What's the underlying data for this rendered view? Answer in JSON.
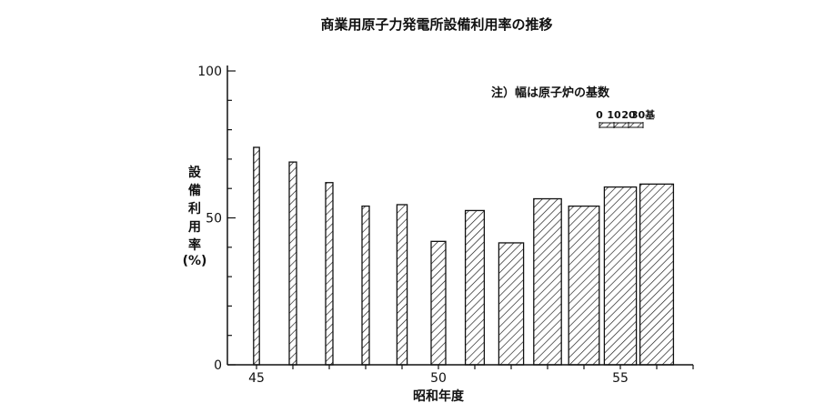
{
  "chart_data": {
    "type": "bar",
    "title": "商業用原子力発電所設備利用率の推移",
    "xlabel": "昭和年度",
    "ylabel_chars": [
      "設",
      "備",
      "利",
      "用",
      "率",
      "(%)"
    ],
    "x_ticks": [
      45,
      50,
      55
    ],
    "y_ticks": [
      0,
      50,
      100
    ],
    "xlim": [
      44.5,
      57
    ],
    "ylim": [
      0,
      100
    ],
    "bar_width_meaning": "幅は原子炉の基数",
    "note": "注）幅は原子炉の基数",
    "scale": {
      "labels": [
        "0",
        "10",
        "20",
        "30基"
      ],
      "max_units": 30
    },
    "bars": [
      {
        "year": 45,
        "value": 74,
        "units": 4
      },
      {
        "year": 46,
        "value": 69,
        "units": 5
      },
      {
        "year": 47,
        "value": 62,
        "units": 5
      },
      {
        "year": 48,
        "value": 54,
        "units": 5
      },
      {
        "year": 49,
        "value": 54.5,
        "units": 7
      },
      {
        "year": 50,
        "value": 42,
        "units": 10
      },
      {
        "year": 51,
        "value": 52.5,
        "units": 13
      },
      {
        "year": 52,
        "value": 41.5,
        "units": 17
      },
      {
        "year": 53,
        "value": 56.5,
        "units": 19
      },
      {
        "year": 54,
        "value": 54,
        "units": 21
      },
      {
        "year": 55,
        "value": 60.5,
        "units": 22
      },
      {
        "year": 56,
        "value": 61.5,
        "units": 23
      }
    ]
  }
}
